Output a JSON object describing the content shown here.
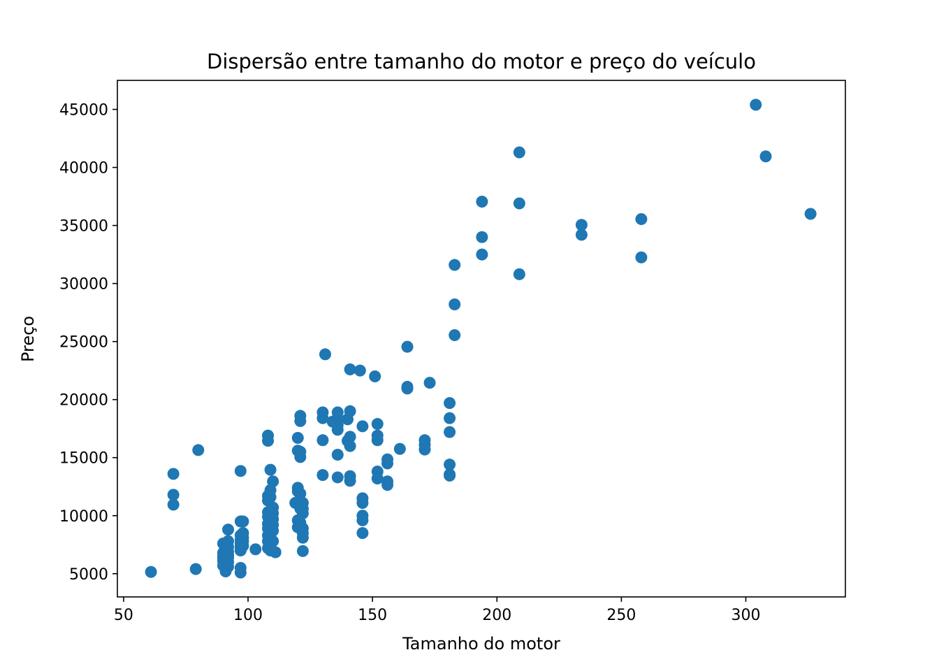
{
  "chart_data": {
    "type": "scatter",
    "title": "Dispersão entre tamanho do motor e preço do veículo",
    "xlabel": "Tamanho do motor",
    "ylabel": "Preço",
    "xlim": [
      47.5,
      340
    ],
    "ylim": [
      3000,
      47500
    ],
    "xticks": [
      50,
      100,
      150,
      200,
      250,
      300
    ],
    "yticks": [
      5000,
      10000,
      15000,
      20000,
      25000,
      30000,
      35000,
      40000,
      45000
    ],
    "grid": false,
    "legend": "none",
    "colors": {
      "marker": "#1f77b4"
    },
    "points": [
      {
        "x": 61,
        "y": 5150
      },
      {
        "x": 70,
        "y": 13600
      },
      {
        "x": 70,
        "y": 11800
      },
      {
        "x": 70,
        "y": 10950
      },
      {
        "x": 79,
        "y": 5400
      },
      {
        "x": 80,
        "y": 15650
      },
      {
        "x": 90,
        "y": 7600
      },
      {
        "x": 90,
        "y": 6800
      },
      {
        "x": 90,
        "y": 6500
      },
      {
        "x": 90,
        "y": 6300
      },
      {
        "x": 90,
        "y": 6100
      },
      {
        "x": 90,
        "y": 5700
      },
      {
        "x": 91,
        "y": 5500
      },
      {
        "x": 91,
        "y": 5200
      },
      {
        "x": 91,
        "y": 6200
      },
      {
        "x": 92,
        "y": 8800
      },
      {
        "x": 92,
        "y": 7800
      },
      {
        "x": 92,
        "y": 7300
      },
      {
        "x": 92,
        "y": 6900
      },
      {
        "x": 92,
        "y": 6600
      },
      {
        "x": 92,
        "y": 6400
      },
      {
        "x": 92,
        "y": 6000
      },
      {
        "x": 92,
        "y": 5600
      },
      {
        "x": 97,
        "y": 13850
      },
      {
        "x": 97,
        "y": 9500
      },
      {
        "x": 97,
        "y": 8300
      },
      {
        "x": 97,
        "y": 7900
      },
      {
        "x": 97,
        "y": 7600
      },
      {
        "x": 97,
        "y": 7300
      },
      {
        "x": 97,
        "y": 7000
      },
      {
        "x": 97,
        "y": 5500
      },
      {
        "x": 97,
        "y": 5100
      },
      {
        "x": 98,
        "y": 9500
      },
      {
        "x": 98,
        "y": 8500
      },
      {
        "x": 98,
        "y": 8100
      },
      {
        "x": 98,
        "y": 7800
      },
      {
        "x": 98,
        "y": 7400
      },
      {
        "x": 103,
        "y": 7100
      },
      {
        "x": 108,
        "y": 16900
      },
      {
        "x": 108,
        "y": 16450
      },
      {
        "x": 108,
        "y": 11700
      },
      {
        "x": 108,
        "y": 11300
      },
      {
        "x": 108,
        "y": 10300
      },
      {
        "x": 108,
        "y": 9900
      },
      {
        "x": 108,
        "y": 9300
      },
      {
        "x": 108,
        "y": 8900
      },
      {
        "x": 108,
        "y": 8300
      },
      {
        "x": 108,
        "y": 7800
      },
      {
        "x": 108,
        "y": 7200
      },
      {
        "x": 109,
        "y": 13950
      },
      {
        "x": 109,
        "y": 12200
      },
      {
        "x": 109,
        "y": 11600
      },
      {
        "x": 109,
        "y": 9900
      },
      {
        "x": 109,
        "y": 9600
      },
      {
        "x": 109,
        "y": 8900
      },
      {
        "x": 109,
        "y": 8000
      },
      {
        "x": 109,
        "y": 7000
      },
      {
        "x": 110,
        "y": 12950
      },
      {
        "x": 110,
        "y": 10700
      },
      {
        "x": 110,
        "y": 10200
      },
      {
        "x": 110,
        "y": 9700
      },
      {
        "x": 110,
        "y": 9200
      },
      {
        "x": 110,
        "y": 8700
      },
      {
        "x": 110,
        "y": 7800
      },
      {
        "x": 111,
        "y": 6850
      },
      {
        "x": 119,
        "y": 11100
      },
      {
        "x": 120,
        "y": 16700
      },
      {
        "x": 120,
        "y": 15600
      },
      {
        "x": 120,
        "y": 12400
      },
      {
        "x": 120,
        "y": 12100
      },
      {
        "x": 120,
        "y": 11200
      },
      {
        "x": 120,
        "y": 9600
      },
      {
        "x": 120,
        "y": 9000
      },
      {
        "x": 121,
        "y": 18600
      },
      {
        "x": 121,
        "y": 18150
      },
      {
        "x": 121,
        "y": 15500
      },
      {
        "x": 121,
        "y": 15050
      },
      {
        "x": 121,
        "y": 11900
      },
      {
        "x": 121,
        "y": 11100
      },
      {
        "x": 121,
        "y": 10600
      },
      {
        "x": 121,
        "y": 9400
      },
      {
        "x": 122,
        "y": 11100
      },
      {
        "x": 122,
        "y": 10600
      },
      {
        "x": 122,
        "y": 10200
      },
      {
        "x": 122,
        "y": 8900
      },
      {
        "x": 122,
        "y": 8500
      },
      {
        "x": 122,
        "y": 8100
      },
      {
        "x": 122,
        "y": 6950
      },
      {
        "x": 130,
        "y": 18900
      },
      {
        "x": 130,
        "y": 18400
      },
      {
        "x": 130,
        "y": 16500
      },
      {
        "x": 130,
        "y": 13500
      },
      {
        "x": 131,
        "y": 23900
      },
      {
        "x": 134,
        "y": 18100
      },
      {
        "x": 136,
        "y": 18900
      },
      {
        "x": 136,
        "y": 18400
      },
      {
        "x": 136,
        "y": 17800
      },
      {
        "x": 136,
        "y": 17400
      },
      {
        "x": 136,
        "y": 15250
      },
      {
        "x": 136,
        "y": 13300
      },
      {
        "x": 140,
        "y": 18300
      },
      {
        "x": 140,
        "y": 16450
      },
      {
        "x": 141,
        "y": 22600
      },
      {
        "x": 141,
        "y": 19000
      },
      {
        "x": 141,
        "y": 16800
      },
      {
        "x": 141,
        "y": 16000
      },
      {
        "x": 141,
        "y": 13400
      },
      {
        "x": 141,
        "y": 13000
      },
      {
        "x": 145,
        "y": 22500
      },
      {
        "x": 146,
        "y": 17700
      },
      {
        "x": 146,
        "y": 11500
      },
      {
        "x": 146,
        "y": 11100
      },
      {
        "x": 146,
        "y": 10000
      },
      {
        "x": 146,
        "y": 9600
      },
      {
        "x": 146,
        "y": 8500
      },
      {
        "x": 151,
        "y": 22000
      },
      {
        "x": 152,
        "y": 17900
      },
      {
        "x": 152,
        "y": 16900
      },
      {
        "x": 152,
        "y": 16500
      },
      {
        "x": 152,
        "y": 13800
      },
      {
        "x": 152,
        "y": 13200
      },
      {
        "x": 156,
        "y": 14850
      },
      {
        "x": 156,
        "y": 14500
      },
      {
        "x": 156,
        "y": 12950
      },
      {
        "x": 156,
        "y": 12650
      },
      {
        "x": 161,
        "y": 15750
      },
      {
        "x": 164,
        "y": 24550
      },
      {
        "x": 164,
        "y": 21100
      },
      {
        "x": 164,
        "y": 20950
      },
      {
        "x": 171,
        "y": 16500
      },
      {
        "x": 171,
        "y": 16100
      },
      {
        "x": 171,
        "y": 15700
      },
      {
        "x": 173,
        "y": 21450
      },
      {
        "x": 181,
        "y": 19700
      },
      {
        "x": 181,
        "y": 18400
      },
      {
        "x": 181,
        "y": 17200
      },
      {
        "x": 181,
        "y": 14400
      },
      {
        "x": 181,
        "y": 13550
      },
      {
        "x": 181,
        "y": 13450
      },
      {
        "x": 183,
        "y": 31600
      },
      {
        "x": 183,
        "y": 28200
      },
      {
        "x": 183,
        "y": 25550
      },
      {
        "x": 194,
        "y": 37050
      },
      {
        "x": 194,
        "y": 34000
      },
      {
        "x": 194,
        "y": 32500
      },
      {
        "x": 209,
        "y": 41300
      },
      {
        "x": 209,
        "y": 36900
      },
      {
        "x": 209,
        "y": 30800
      },
      {
        "x": 234,
        "y": 35050
      },
      {
        "x": 234,
        "y": 34200
      },
      {
        "x": 258,
        "y": 35550
      },
      {
        "x": 258,
        "y": 32250
      },
      {
        "x": 304,
        "y": 45400
      },
      {
        "x": 308,
        "y": 40950
      },
      {
        "x": 326,
        "y": 36000
      }
    ]
  }
}
